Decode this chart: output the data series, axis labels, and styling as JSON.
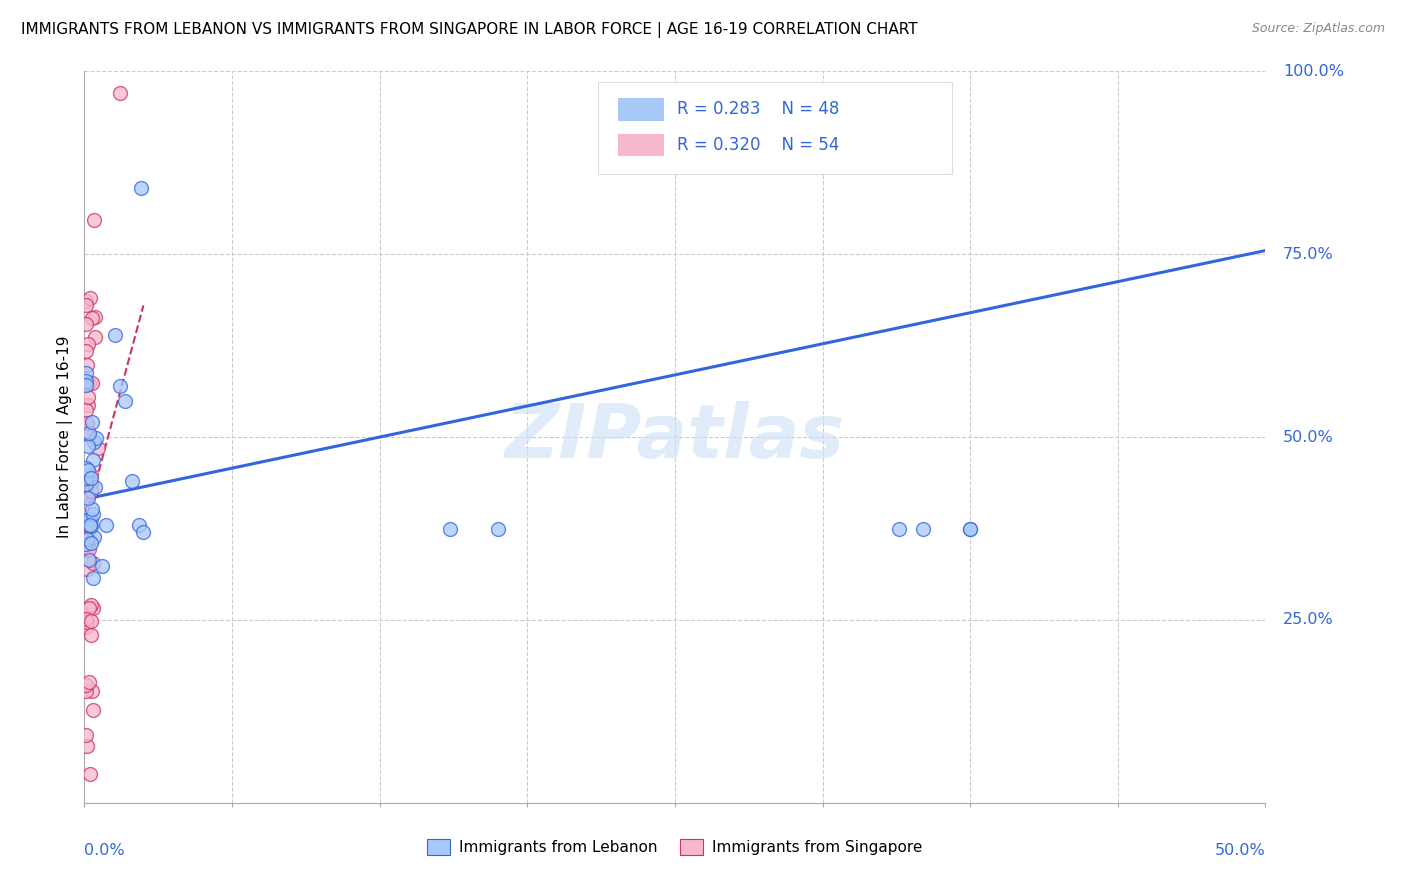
{
  "title": "IMMIGRANTS FROM LEBANON VS IMMIGRANTS FROM SINGAPORE IN LABOR FORCE | AGE 16-19 CORRELATION CHART",
  "source": "Source: ZipAtlas.com",
  "ylabel_label": "In Labor Force | Age 16-19",
  "watermark": "ZIPatlas",
  "xlim": [
    0,
    0.5
  ],
  "ylim": [
    0,
    1.0
  ],
  "color_lebanon": "#a8c8f8",
  "color_singapore": "#f8b8cc",
  "color_line_lebanon": "#3366dd",
  "color_line_singapore": "#cc3366",
  "lebanon_scatter": {
    "x": [
      0.001,
      0.001,
      0.001,
      0.001,
      0.001,
      0.002,
      0.002,
      0.002,
      0.002,
      0.002,
      0.003,
      0.003,
      0.003,
      0.003,
      0.004,
      0.004,
      0.004,
      0.005,
      0.005,
      0.006,
      0.006,
      0.007,
      0.007,
      0.008,
      0.008,
      0.009,
      0.01,
      0.01,
      0.011,
      0.012,
      0.013,
      0.014,
      0.015,
      0.015,
      0.016,
      0.017,
      0.02,
      0.022,
      0.025,
      0.15,
      0.155,
      0.175,
      0.18,
      0.345,
      0.35,
      0.375,
      0.38,
      0.05
    ],
    "y": [
      0.38,
      0.42,
      0.48,
      0.44,
      0.35,
      0.4,
      0.52,
      0.36,
      0.3,
      0.46,
      0.42,
      0.38,
      0.34,
      0.28,
      0.5,
      0.44,
      0.32,
      0.48,
      0.38,
      0.55,
      0.44,
      0.62,
      0.52,
      0.58,
      0.48,
      0.65,
      0.56,
      0.44,
      0.42,
      0.4,
      0.38,
      0.37,
      0.36,
      0.42,
      0.35,
      0.34,
      0.36,
      0.34,
      0.36,
      0.38,
      0.36,
      0.38,
      0.36,
      0.38,
      0.37,
      0.37,
      0.38,
      0.36
    ]
  },
  "singapore_scatter": {
    "x": [
      0.001,
      0.001,
      0.001,
      0.001,
      0.001,
      0.001,
      0.001,
      0.001,
      0.001,
      0.001,
      0.002,
      0.002,
      0.002,
      0.002,
      0.002,
      0.002,
      0.002,
      0.002,
      0.002,
      0.002,
      0.003,
      0.003,
      0.003,
      0.003,
      0.003,
      0.003,
      0.003,
      0.003,
      0.003,
      0.004,
      0.004,
      0.004,
      0.004,
      0.004,
      0.004,
      0.004,
      0.005,
      0.005,
      0.005,
      0.005,
      0.005,
      0.006,
      0.006,
      0.006,
      0.006,
      0.007,
      0.007,
      0.007,
      0.008,
      0.008,
      0.009,
      0.009,
      0.012,
      0.02
    ],
    "y": [
      0.4,
      0.44,
      0.48,
      0.52,
      0.56,
      0.6,
      0.36,
      0.32,
      0.28,
      0.24,
      0.38,
      0.42,
      0.46,
      0.5,
      0.54,
      0.58,
      0.62,
      0.34,
      0.3,
      0.26,
      0.36,
      0.4,
      0.44,
      0.48,
      0.52,
      0.56,
      0.6,
      0.66,
      0.72,
      0.34,
      0.38,
      0.42,
      0.46,
      0.5,
      0.54,
      0.58,
      0.32,
      0.36,
      0.4,
      0.44,
      0.48,
      0.3,
      0.34,
      0.38,
      0.42,
      0.28,
      0.32,
      0.36,
      0.26,
      0.3,
      0.24,
      0.28,
      0.36,
      0.38
    ]
  },
  "leb_line": {
    "x0": 0.0,
    "x1": 0.5,
    "y0": 0.415,
    "y1": 0.755
  },
  "sing_line": {
    "x0": 0.0,
    "x1": 0.025,
    "y0": 0.38,
    "y1": 0.68
  }
}
